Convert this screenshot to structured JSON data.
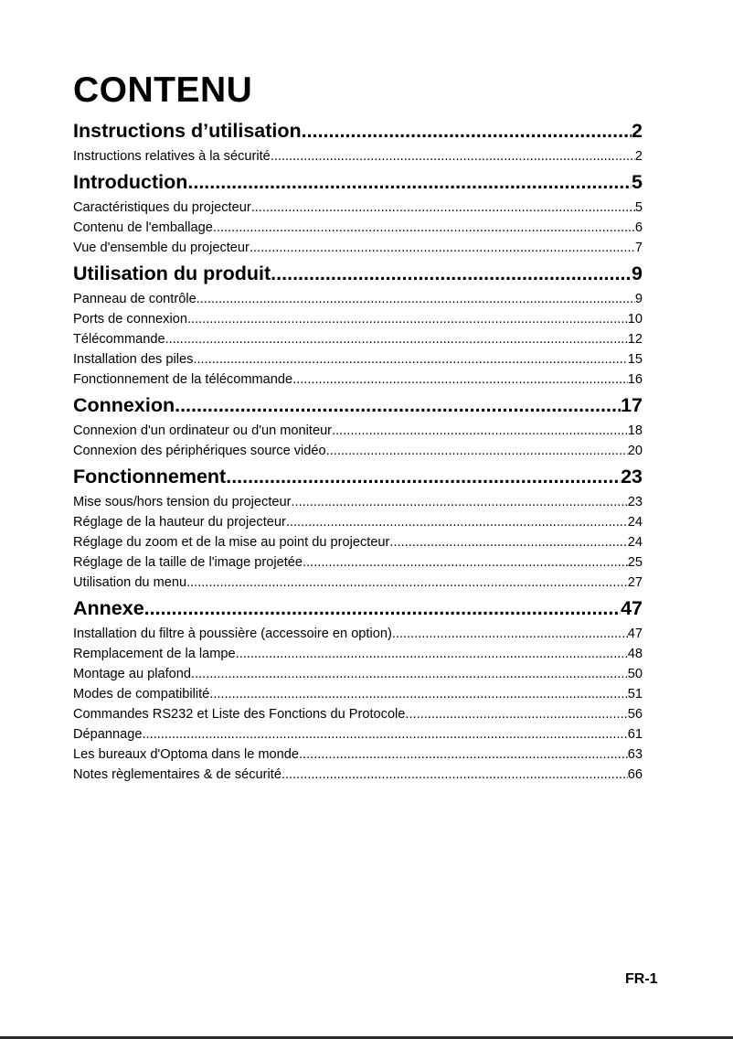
{
  "title": "CONTENU",
  "sections": [
    {
      "label": "Instructions d’utilisation ",
      "page": "2",
      "items": [
        {
          "label": "Instructions relatives à la sécurité ",
          "page": "2"
        }
      ]
    },
    {
      "label": "Introduction",
      "page": " 5",
      "items": [
        {
          "label": "Caractéristiques du projecteur",
          "page": " 5"
        },
        {
          "label": "Contenu de l'emballage",
          "page": " 6"
        },
        {
          "label": "Vue d'ensemble du projecteur",
          "page": " 7"
        }
      ]
    },
    {
      "label": "Utilisation du produit",
      "page": "9",
      "items": [
        {
          "label": "Panneau de contrôle ",
          "page": " 9"
        },
        {
          "label": "Ports de connexion",
          "page": " 10"
        },
        {
          "label": "Télécommande",
          "page": " 12"
        },
        {
          "label": "Installation des piles ",
          "page": " 15"
        },
        {
          "label": "Fonctionnement de la télécommande ",
          "page": " 16"
        }
      ]
    },
    {
      "label": "Connexion ",
      "page": " 17",
      "items": [
        {
          "label": "Connexion d'un ordinateur ou d'un moniteur",
          "page": " 18"
        },
        {
          "label": "Connexion des périphériques source vidéo ",
          "page": " 20"
        }
      ]
    },
    {
      "label": "Fonctionnement ",
      "page": " 23",
      "items": [
        {
          "label": "Mise sous/hors tension du projecteur",
          "page": " 23"
        },
        {
          "label": "Réglage de la hauteur du projecteur ",
          "page": " 24"
        },
        {
          "label": "Réglage du zoom et de la mise au point du projecteur ",
          "page": " 24"
        },
        {
          "label": "Réglage de la taille de l'image projetée",
          "page": " 25"
        },
        {
          "label": "Utilisation du menu ",
          "page": " 27"
        }
      ]
    },
    {
      "label": "Annexe ",
      "page": " 47",
      "items": [
        {
          "label": "Installation du filtre à poussière (accessoire en option)",
          "page": " 47"
        },
        {
          "label": "Remplacement de la lampe",
          "page": " 48"
        },
        {
          "label": "Montage au plafond",
          "page": " 50"
        },
        {
          "label": "Modes de compatibilité",
          "page": " 51"
        },
        {
          "label": "Commandes RS232 et Liste des Fonctions du Protocole",
          "page": " 56"
        },
        {
          "label": "Dépannage",
          "page": " 61"
        },
        {
          "label": "Les bureaux d'Optoma dans le monde",
          "page": " 63"
        },
        {
          "label": "Notes règlementaires & de sécurité ",
          "page": " 66"
        }
      ]
    }
  ],
  "footer": {
    "page_label": "FR-1"
  }
}
